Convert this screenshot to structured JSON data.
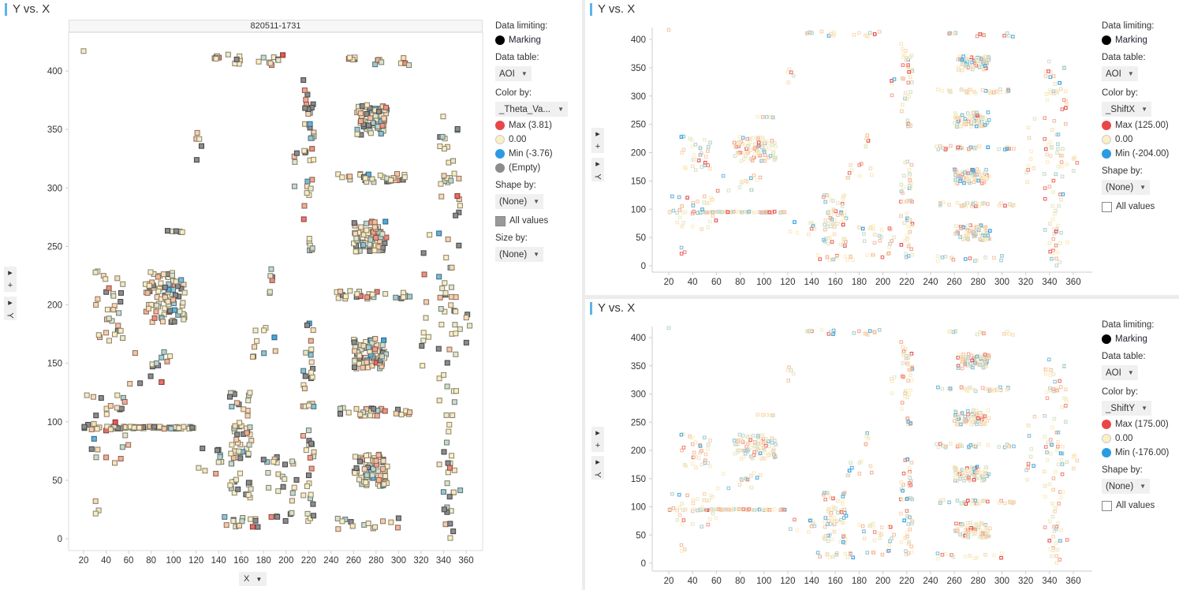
{
  "panels": [
    {
      "title": "Y vs. X",
      "trellis_label": "820511-1731",
      "legend": {
        "data_limiting": "Data limiting:",
        "marking": "Marking",
        "data_table_label": "Data table:",
        "data_table": "AOI",
        "color_by_label": "Color by:",
        "color_by": "_Theta_Va...",
        "max": "Max (3.81)",
        "mid": "0.00",
        "min": "Min (-3.76)",
        "empty": "(Empty)",
        "shape_by_label": "Shape by:",
        "shape_by": "(None)",
        "all_values": "All values",
        "size_by_label": "Size by:",
        "size_by": "(None)"
      },
      "x_selector": "X",
      "y_selector": "Y",
      "collapse_glyph": "+"
    },
    {
      "title": "Y vs. X",
      "legend": {
        "data_limiting": "Data limiting:",
        "marking": "Marking",
        "data_table_label": "Data table:",
        "data_table": "AOI",
        "color_by_label": "Color by:",
        "color_by": "_ShiftX",
        "max": "Max (125.00)",
        "mid": "0.00",
        "min": "Min (-204.00)",
        "shape_by_label": "Shape by:",
        "shape_by": "(None)",
        "all_values": "All values"
      },
      "y_selector": "Y",
      "collapse_glyph": "+"
    },
    {
      "title": "Y vs. X",
      "legend": {
        "data_limiting": "Data limiting:",
        "marking": "Marking",
        "data_table_label": "Data table:",
        "data_table": "AOI",
        "color_by_label": "Color by:",
        "color_by": "_ShiftY",
        "max": "Max (175.00)",
        "mid": "0.00",
        "min": "Min (-176.00)",
        "shape_by_label": "Shape by:",
        "shape_by": "(None)",
        "all_values": "All values"
      },
      "y_selector": "Y",
      "collapse_glyph": "+"
    }
  ],
  "colors": {
    "max": "#e8474a",
    "mid": "#fbefc4",
    "min": "#2b9be3",
    "empty": "#8c8c8c",
    "marking": "#000000",
    "accent": "#5eb3e8"
  },
  "chart_data": [
    {
      "type": "scatter",
      "title": "Y vs. X",
      "xlabel": "X",
      "ylabel": "Y",
      "xlim": [
        10,
        370
      ],
      "ylim": [
        -8,
        425
      ],
      "xticks": [
        20,
        40,
        60,
        80,
        100,
        120,
        140,
        160,
        180,
        200,
        220,
        240,
        260,
        280,
        300,
        320,
        340,
        360
      ],
      "yticks": [
        0,
        50,
        100,
        150,
        200,
        250,
        300,
        350,
        400
      ],
      "color_by": "_Theta_Va...",
      "color_range": [
        -3.76,
        3.81
      ],
      "grid": false,
      "clusters": [
        [
          20,
          20,
          417,
          417,
          1
        ],
        [
          130,
          145,
          410,
          413,
          6
        ],
        [
          145,
          160,
          405,
          415,
          6
        ],
        [
          175,
          200,
          405,
          415,
          9
        ],
        [
          255,
          265,
          405,
          412,
          5
        ],
        [
          275,
          285,
          405,
          412,
          5
        ],
        [
          300,
          310,
          405,
          412,
          4
        ],
        [
          215,
          225,
          230,
          395,
          40
        ],
        [
          215,
          225,
          15,
          95,
          22
        ],
        [
          215,
          225,
          110,
          190,
          22
        ],
        [
          207,
          212,
          300,
          330,
          4
        ],
        [
          260,
          290,
          345,
          372,
          70
        ],
        [
          260,
          290,
          245,
          272,
          70
        ],
        [
          260,
          290,
          145,
          172,
          70
        ],
        [
          260,
          290,
          45,
          72,
          70
        ],
        [
          245,
          310,
          305,
          312,
          30
        ],
        [
          245,
          310,
          205,
          212,
          30
        ],
        [
          245,
          310,
          105,
          112,
          30
        ],
        [
          245,
          300,
          8,
          18,
          14
        ],
        [
          335,
          355,
          0,
          365,
          90
        ],
        [
          75,
          110,
          185,
          228,
          80
        ],
        [
          40,
          120,
          94,
          96,
          60
        ],
        [
          150,
          170,
          35,
          125,
          60
        ],
        [
          30,
          55,
          165,
          230,
          30
        ],
        [
          20,
          60,
          60,
          125,
          35
        ],
        [
          140,
          200,
          10,
          20,
          18
        ],
        [
          120,
          125,
          320,
          350,
          5
        ],
        [
          85,
          110,
          262,
          264,
          6
        ],
        [
          60,
          100,
          130,
          160,
          14
        ],
        [
          170,
          200,
          150,
          185,
          10
        ],
        [
          185,
          195,
          210,
          240,
          6
        ],
        [
          320,
          330,
          130,
          270,
          10
        ],
        [
          180,
          200,
          40,
          70,
          14
        ],
        [
          30,
          35,
          20,
          40,
          3
        ],
        [
          360,
          365,
          80,
          200,
          4
        ],
        [
          120,
          145,
          50,
          80,
          10
        ],
        [
          200,
          210,
          10,
          70,
          8
        ]
      ]
    },
    {
      "type": "scatter",
      "title": "Y vs. X",
      "xlabel": "X",
      "ylabel": "Y",
      "xlim": [
        10,
        370
      ],
      "ylim": [
        -8,
        425
      ],
      "xticks": [
        20,
        40,
        60,
        80,
        100,
        120,
        140,
        160,
        180,
        200,
        220,
        240,
        260,
        280,
        300,
        320,
        340,
        360
      ],
      "yticks": [
        0,
        50,
        100,
        150,
        200,
        250,
        300,
        350,
        400
      ],
      "color_by": "_ShiftX",
      "color_range": [
        -204,
        125
      ],
      "grid": false
    },
    {
      "type": "scatter",
      "title": "Y vs. X",
      "xlabel": "X",
      "ylabel": "Y",
      "xlim": [
        10,
        370
      ],
      "ylim": [
        -8,
        425
      ],
      "xticks": [
        20,
        40,
        60,
        80,
        100,
        120,
        140,
        160,
        180,
        200,
        220,
        240,
        260,
        280,
        300,
        320,
        340,
        360
      ],
      "yticks": [
        0,
        50,
        100,
        150,
        200,
        250,
        300,
        350,
        400
      ],
      "color_by": "_ShiftY",
      "color_range": [
        -176,
        175
      ],
      "grid": false
    }
  ]
}
